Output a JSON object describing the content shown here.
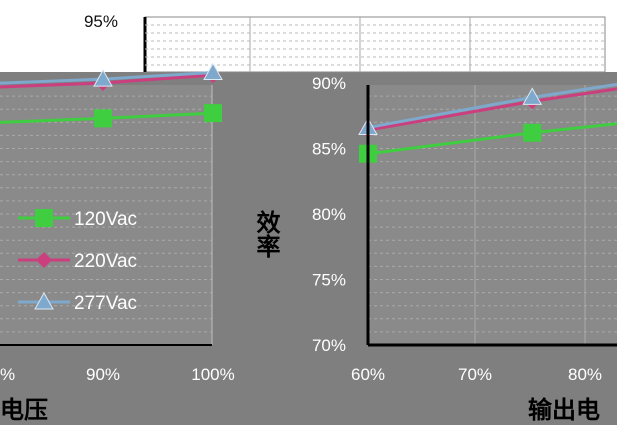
{
  "colors": {
    "background": "#7f7f7f",
    "plot_area": "#8a8a8a",
    "grid": "#a9a9a9",
    "120Vac": "#3fce3f",
    "220Vac": "#cc3f7f",
    "277Vac": "#7ea8cc"
  },
  "chart_data": [
    {
      "type": "line",
      "x_tick_labels": [
        "%",
        "90%",
        "100%"
      ],
      "xlabel": "电压",
      "y_tick_labels": [
        "95%"
      ],
      "series": [
        {
          "name": "120Vac",
          "x": [
            90,
            100
          ],
          "values": [
            87.3,
            87.7
          ],
          "marker": "square"
        },
        {
          "name": "220Vac",
          "x": [
            90,
            100
          ],
          "values": [
            90.0,
            90.6
          ],
          "marker": "diamond"
        },
        {
          "name": "277Vac",
          "x": [
            90,
            100
          ],
          "values": [
            90.3,
            90.8
          ],
          "marker": "triangle"
        }
      ],
      "legend": [
        "120Vac",
        "220Vac",
        "277Vac"
      ],
      "legend_position": "left"
    },
    {
      "type": "line",
      "x": [
        60,
        75,
        80
      ],
      "x_tick_labels": [
        "60%",
        "70%",
        "80%"
      ],
      "xlabel": "输出电",
      "y_tick_labels": [
        "90%",
        "85%",
        "80%",
        "75%",
        "70%"
      ],
      "ylabel": "效率",
      "ylim": [
        70,
        90
      ],
      "series": [
        {
          "name": "120Vac",
          "x": [
            60,
            75
          ],
          "values": [
            84.6,
            86.2
          ],
          "marker": "square"
        },
        {
          "name": "220Vac",
          "x": [
            60,
            75
          ],
          "values": [
            86.4,
            88.6
          ],
          "marker": "diamond"
        },
        {
          "name": "277Vac",
          "x": [
            60,
            75
          ],
          "values": [
            86.6,
            88.9
          ],
          "marker": "triangle"
        }
      ]
    }
  ]
}
